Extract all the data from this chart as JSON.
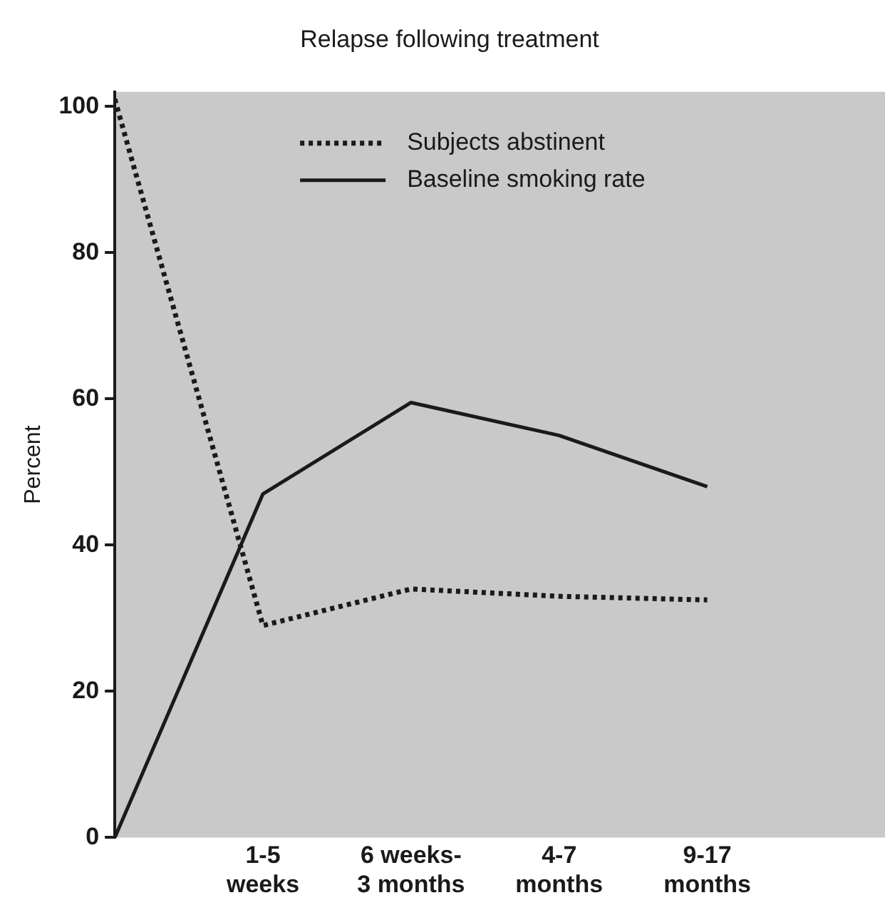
{
  "chart_data": {
    "type": "line",
    "title": "Relapse following treatment",
    "ylabel": "Percent",
    "categories": [
      null,
      "1-5 weeks",
      "6 weeks-3 months",
      "4-7 months",
      "9-17 months"
    ],
    "series": [
      {
        "name": "Subjects abstinent",
        "color": "#1a1a1a",
        "line_style": "dotted",
        "values": [
          101,
          29,
          34,
          33,
          32.5
        ]
      },
      {
        "name": "Baseline smoking rate",
        "color": "#1a1a1a",
        "line_style": "solid",
        "values": [
          0,
          47,
          59.5,
          55,
          48
        ]
      }
    ],
    "ylim": [
      0,
      102
    ],
    "yticks": [
      0,
      20,
      40,
      60,
      80,
      100
    ],
    "grid": false,
    "legend": "top left",
    "marker": "none"
  }
}
